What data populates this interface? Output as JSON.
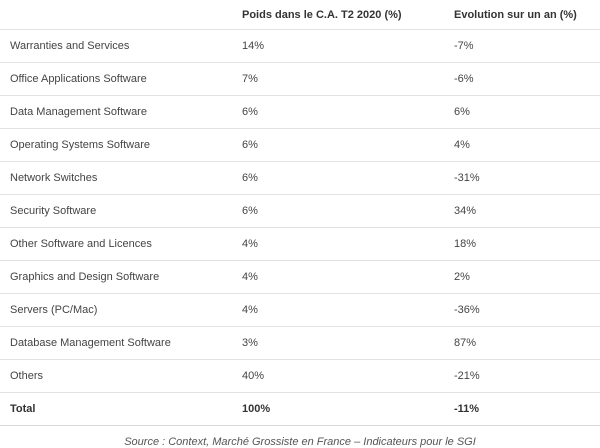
{
  "table": {
    "headers": [
      "",
      "Poids dans le C.A. T2 2020 (%)",
      "Evolution sur un an (%)"
    ],
    "rows": [
      {
        "label": "Warranties and Services",
        "weight": "14%",
        "evolution": "-7%"
      },
      {
        "label": "Office Applications Software",
        "weight": "7%",
        "evolution": "-6%"
      },
      {
        "label": "Data Management Software",
        "weight": "6%",
        "evolution": "6%"
      },
      {
        "label": "Operating Systems Software",
        "weight": "6%",
        "evolution": "4%"
      },
      {
        "label": "Network Switches",
        "weight": "6%",
        "evolution": "-31%"
      },
      {
        "label": "Security Software",
        "weight": "6%",
        "evolution": "34%"
      },
      {
        "label": "Other Software and Licences",
        "weight": "4%",
        "evolution": "18%"
      },
      {
        "label": "Graphics and Design Software",
        "weight": "4%",
        "evolution": "2%"
      },
      {
        "label": "Servers (PC/Mac)",
        "weight": "4%",
        "evolution": "-36%"
      },
      {
        "label": "Database Management Software",
        "weight": "3%",
        "evolution": "87%"
      },
      {
        "label": "Others",
        "weight": "40%",
        "evolution": "-21%"
      }
    ],
    "total": {
      "label": "Total",
      "weight": "100%",
      "evolution": "-11%"
    }
  },
  "source": "Source : Context, Marché Grossiste en France – Indicateurs pour le SGI"
}
